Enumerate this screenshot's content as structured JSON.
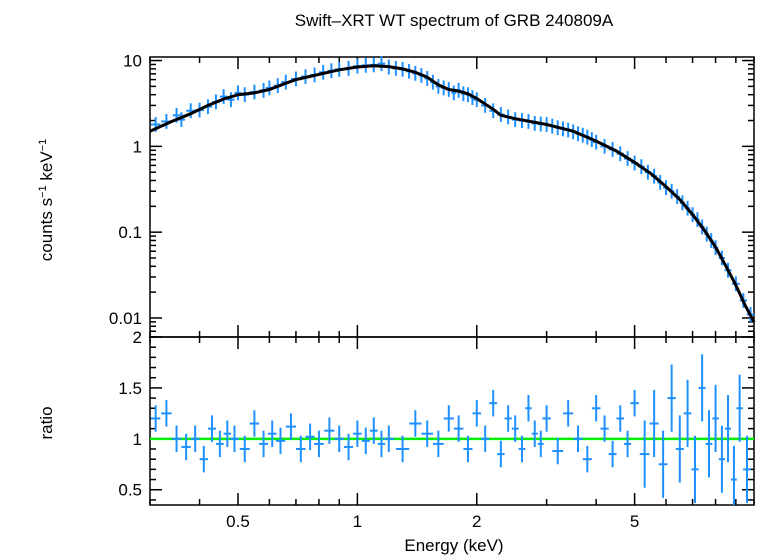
{
  "chart_data": [
    {
      "type": "scatter",
      "panel": "spectrum",
      "title": "Swift–XRT WT spectrum of GRB 240809A",
      "ylabel_main": "counts s",
      "ylabel_exp1": "−1",
      "ylabel_mid": " keV",
      "ylabel_exp2": "−1",
      "x_scale": "log",
      "y_scale": "log",
      "xlim": [
        0.3,
        10
      ],
      "ylim": [
        0.006,
        11
      ],
      "y_ticks": [
        {
          "value": 10,
          "label": "10"
        },
        {
          "value": 1,
          "label": "1"
        },
        {
          "value": 0.1,
          "label": "0.1"
        },
        {
          "value": 0.01,
          "label": "0.01"
        }
      ],
      "data_color": "#1e90ff",
      "model_color": "#000000",
      "model": [
        [
          0.3,
          1.5
        ],
        [
          0.34,
          1.95
        ],
        [
          0.38,
          2.4
        ],
        [
          0.42,
          3.0
        ],
        [
          0.46,
          3.55
        ],
        [
          0.5,
          4.0
        ],
        [
          0.55,
          4.2
        ],
        [
          0.6,
          4.6
        ],
        [
          0.65,
          5.3
        ],
        [
          0.7,
          6.0
        ],
        [
          0.8,
          6.9
        ],
        [
          0.9,
          7.8
        ],
        [
          1.0,
          8.4
        ],
        [
          1.1,
          8.7
        ],
        [
          1.2,
          8.5
        ],
        [
          1.3,
          8.0
        ],
        [
          1.4,
          7.3
        ],
        [
          1.5,
          6.4
        ],
        [
          1.6,
          5.2
        ],
        [
          1.7,
          4.6
        ],
        [
          1.8,
          4.4
        ],
        [
          1.9,
          4.1
        ],
        [
          2.0,
          3.6
        ],
        [
          2.2,
          2.7
        ],
        [
          2.3,
          2.3
        ],
        [
          2.5,
          2.1
        ],
        [
          3.0,
          1.8
        ],
        [
          3.5,
          1.5
        ],
        [
          4.0,
          1.15
        ],
        [
          4.5,
          0.88
        ],
        [
          5.0,
          0.65
        ],
        [
          5.5,
          0.48
        ],
        [
          6.0,
          0.34
        ],
        [
          6.5,
          0.24
        ],
        [
          7.0,
          0.16
        ],
        [
          7.5,
          0.105
        ],
        [
          8.0,
          0.067
        ],
        [
          8.5,
          0.04
        ],
        [
          9.0,
          0.024
        ],
        [
          9.5,
          0.014
        ],
        [
          10.0,
          0.009
        ]
      ],
      "points": [
        [
          0.31,
          1.8
        ],
        [
          0.33,
          1.95
        ],
        [
          0.35,
          2.3
        ],
        [
          0.36,
          2.05
        ],
        [
          0.38,
          2.6
        ],
        [
          0.4,
          2.65
        ],
        [
          0.42,
          2.9
        ],
        [
          0.44,
          3.3
        ],
        [
          0.46,
          3.8
        ],
        [
          0.48,
          3.5
        ],
        [
          0.5,
          4.2
        ],
        [
          0.52,
          4.0
        ],
        [
          0.55,
          4.3
        ],
        [
          0.58,
          4.5
        ],
        [
          0.6,
          4.8
        ],
        [
          0.63,
          5.1
        ],
        [
          0.66,
          5.6
        ],
        [
          0.7,
          6.1
        ],
        [
          0.74,
          6.5
        ],
        [
          0.78,
          6.8
        ],
        [
          0.82,
          7.3
        ],
        [
          0.86,
          7.6
        ],
        [
          0.9,
          7.9
        ],
        [
          0.95,
          8.1
        ],
        [
          1.0,
          8.6
        ],
        [
          1.05,
          8.8
        ],
        [
          1.1,
          8.9
        ],
        [
          1.15,
          9.2
        ],
        [
          1.2,
          8.4
        ],
        [
          1.25,
          8.1
        ],
        [
          1.3,
          7.9
        ],
        [
          1.35,
          7.5
        ],
        [
          1.4,
          7.1
        ],
        [
          1.45,
          6.7
        ],
        [
          1.5,
          6.2
        ],
        [
          1.55,
          5.6
        ],
        [
          1.6,
          5.0
        ],
        [
          1.65,
          4.8
        ],
        [
          1.7,
          4.6
        ],
        [
          1.75,
          4.2
        ],
        [
          1.8,
          4.5
        ],
        [
          1.85,
          4.1
        ],
        [
          1.9,
          4.0
        ],
        [
          1.95,
          3.7
        ],
        [
          2.0,
          3.5
        ],
        [
          2.1,
          3.0
        ],
        [
          2.2,
          2.6
        ],
        [
          2.3,
          2.35
        ],
        [
          2.4,
          2.2
        ],
        [
          2.5,
          2.05
        ],
        [
          2.6,
          2.0
        ],
        [
          2.7,
          1.95
        ],
        [
          2.8,
          1.85
        ],
        [
          2.9,
          1.82
        ],
        [
          3.0,
          1.8
        ],
        [
          3.1,
          1.72
        ],
        [
          3.2,
          1.65
        ],
        [
          3.3,
          1.6
        ],
        [
          3.4,
          1.55
        ],
        [
          3.5,
          1.48
        ],
        [
          3.6,
          1.4
        ],
        [
          3.7,
          1.35
        ],
        [
          3.8,
          1.28
        ],
        [
          3.9,
          1.2
        ],
        [
          4.0,
          1.12
        ],
        [
          4.2,
          1.0
        ],
        [
          4.4,
          0.92
        ],
        [
          4.6,
          0.82
        ],
        [
          4.8,
          0.72
        ],
        [
          5.0,
          0.64
        ],
        [
          5.2,
          0.58
        ],
        [
          5.4,
          0.5
        ],
        [
          5.6,
          0.45
        ],
        [
          5.8,
          0.38
        ],
        [
          6.0,
          0.33
        ],
        [
          6.2,
          0.3
        ],
        [
          6.4,
          0.26
        ],
        [
          6.6,
          0.22
        ],
        [
          6.8,
          0.19
        ],
        [
          7.0,
          0.16
        ],
        [
          7.2,
          0.14
        ],
        [
          7.4,
          0.115
        ],
        [
          7.6,
          0.095
        ],
        [
          7.8,
          0.08
        ],
        [
          8.0,
          0.066
        ],
        [
          8.3,
          0.05
        ],
        [
          8.6,
          0.036
        ],
        [
          9.0,
          0.025
        ],
        [
          9.4,
          0.016
        ],
        [
          9.8,
          0.011
        ]
      ]
    },
    {
      "type": "scatter",
      "panel": "ratio",
      "xlabel": "Energy (keV)",
      "ylabel": "ratio",
      "x_scale": "log",
      "y_scale": "linear",
      "xlim": [
        0.3,
        10
      ],
      "ylim": [
        0.35,
        2.0
      ],
      "x_ticks": [
        {
          "value": 0.5,
          "label": "0.5"
        },
        {
          "value": 1,
          "label": "1"
        },
        {
          "value": 2,
          "label": "2"
        },
        {
          "value": 5,
          "label": "5"
        }
      ],
      "y_ticks": [
        {
          "value": 2,
          "label": "2"
        },
        {
          "value": 1.5,
          "label": "1.5"
        },
        {
          "value": 1,
          "label": "1"
        },
        {
          "value": 0.5,
          "label": "0.5"
        }
      ],
      "reference_line": 1.0,
      "reference_color": "#00ee00",
      "data_color": "#1e90ff",
      "points": [
        [
          0.31,
          1.2
        ],
        [
          0.33,
          1.25
        ],
        [
          0.35,
          1.0
        ],
        [
          0.37,
          0.92
        ],
        [
          0.39,
          1.0
        ],
        [
          0.41,
          0.8
        ],
        [
          0.43,
          1.1
        ],
        [
          0.45,
          0.95
        ],
        [
          0.47,
          1.05
        ],
        [
          0.49,
          1.0
        ],
        [
          0.52,
          0.9
        ],
        [
          0.55,
          1.15
        ],
        [
          0.58,
          0.95
        ],
        [
          0.61,
          1.05
        ],
        [
          0.64,
          0.98
        ],
        [
          0.68,
          1.12
        ],
        [
          0.72,
          0.9
        ],
        [
          0.76,
          1.02
        ],
        [
          0.8,
          0.95
        ],
        [
          0.85,
          1.08
        ],
        [
          0.9,
          1.0
        ],
        [
          0.95,
          0.92
        ],
        [
          1.0,
          1.05
        ],
        [
          1.05,
          0.98
        ],
        [
          1.1,
          1.08
        ],
        [
          1.15,
          0.95
        ],
        [
          1.2,
          1.0
        ],
        [
          1.3,
          0.9
        ],
        [
          1.4,
          1.15
        ],
        [
          1.5,
          1.05
        ],
        [
          1.6,
          0.95
        ],
        [
          1.7,
          1.2
        ],
        [
          1.8,
          1.1
        ],
        [
          1.9,
          0.9
        ],
        [
          2.0,
          1.25
        ],
        [
          2.1,
          1.0
        ],
        [
          2.2,
          1.35
        ],
        [
          2.3,
          0.85
        ],
        [
          2.4,
          1.2
        ],
        [
          2.5,
          1.1
        ],
        [
          2.6,
          0.9
        ],
        [
          2.7,
          1.3
        ],
        [
          2.8,
          1.05
        ],
        [
          2.9,
          0.95
        ],
        [
          3.0,
          1.2
        ],
        [
          3.2,
          0.88
        ],
        [
          3.4,
          1.25
        ],
        [
          3.6,
          1.0
        ],
        [
          3.8,
          0.8
        ],
        [
          4.0,
          1.3
        ],
        [
          4.2,
          1.1
        ],
        [
          4.4,
          0.85
        ],
        [
          4.6,
          1.2
        ],
        [
          4.8,
          0.95
        ],
        [
          5.0,
          1.35
        ],
        [
          5.3,
          0.85
        ],
        [
          5.6,
          1.15
        ],
        [
          5.9,
          0.75
        ],
        [
          6.2,
          1.4
        ],
        [
          6.5,
          0.9
        ],
        [
          6.8,
          1.25
        ],
        [
          7.1,
          0.7
        ],
        [
          7.4,
          1.5
        ],
        [
          7.7,
          0.95
        ],
        [
          8.0,
          1.2
        ],
        [
          8.3,
          0.8
        ],
        [
          8.6,
          1.1
        ],
        [
          8.9,
          0.6
        ],
        [
          9.2,
          1.3
        ],
        [
          9.6,
          0.7
        ]
      ]
    }
  ]
}
